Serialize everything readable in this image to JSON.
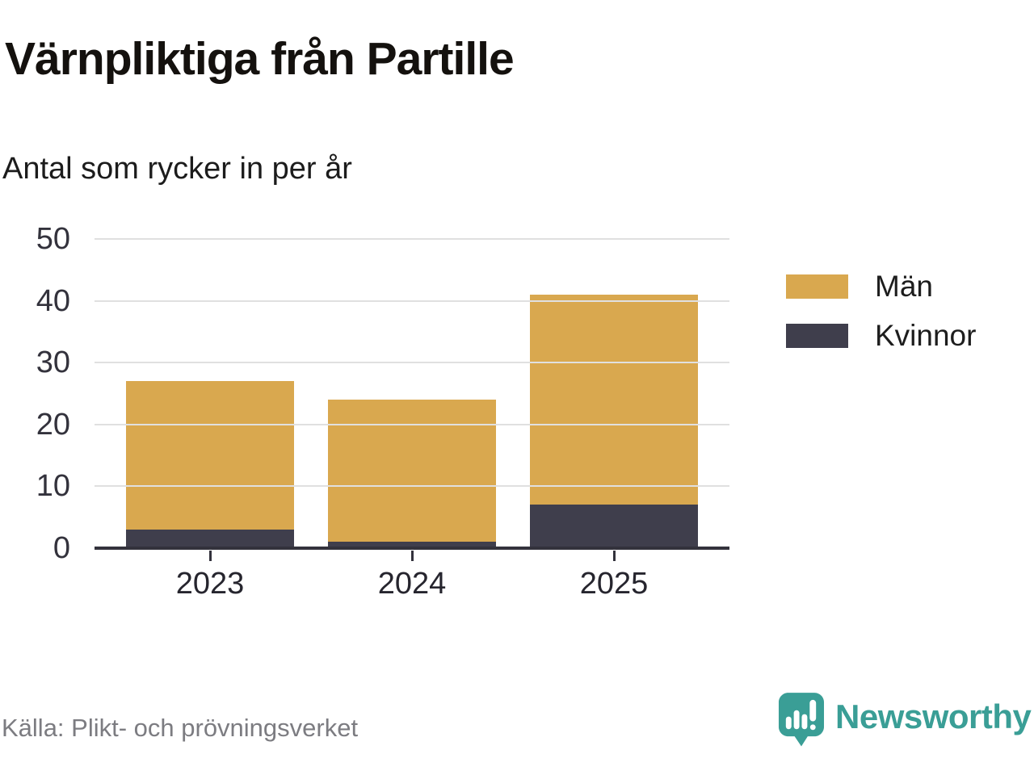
{
  "title": "Värnpliktiga från Partille",
  "subtitle": "Antal som rycker in per år",
  "source": "Källa: Plikt- och prövningsverket",
  "brand": {
    "name": "Newsworthy"
  },
  "colors": {
    "men": "#D9A84F",
    "women": "#3F3E4C",
    "axis": "#33323C",
    "grid": "#E0E0E0",
    "brand_teal": "#3A9E96",
    "source_text": "#7C7C81"
  },
  "chart_data": {
    "type": "bar",
    "stacked": true,
    "title": "Värnpliktiga från Partille",
    "subtitle": "Antal som rycker in per år",
    "categories": [
      "2023",
      "2024",
      "2025"
    ],
    "series": [
      {
        "name": "Män",
        "color": "#D9A84F",
        "values": [
          24,
          23,
          34
        ]
      },
      {
        "name": "Kvinnor",
        "color": "#3F3E4C",
        "values": [
          3,
          1,
          7
        ]
      }
    ],
    "stack_totals": [
      27,
      24,
      41
    ],
    "xlabel": "",
    "ylabel": "",
    "ylim": [
      0,
      50
    ],
    "yticks": [
      0,
      10,
      20,
      30,
      40,
      50
    ],
    "grid": true,
    "legend_position": "right"
  }
}
